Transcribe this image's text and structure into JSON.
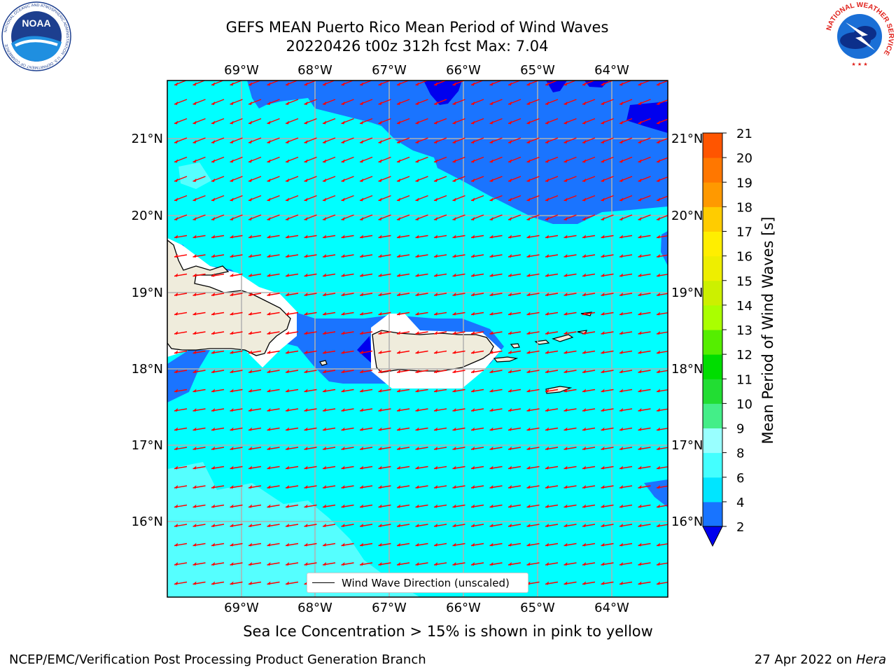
{
  "title": {
    "line1": "GEFS MEAN Puerto Rico Mean Period of Wind Waves",
    "line2": "20220426 t00z 312h fcst   Max: 7.04"
  },
  "logos": {
    "left": "NOAA",
    "left_ring": "NATIONAL OCEANIC AND ATMOSPHERIC ADMINISTRATION · U.S. DEPARTMENT OF COMMERCE",
    "right_ring": "NATIONAL WEATHER SERVICE"
  },
  "map": {
    "lon_labels": [
      "69°W",
      "68°W",
      "67°W",
      "66°W",
      "65°W",
      "64°W"
    ],
    "lat_labels": [
      "21°N",
      "20°N",
      "19°N",
      "18°N",
      "17°N",
      "16°N"
    ],
    "wind_wave_direction": "toward west-southwest",
    "arrow_color": "#ff0000",
    "land_color": "#efecdc"
  },
  "colorbar": {
    "label": "Mean Period of Wind Waves [s]",
    "ticks": [
      "2",
      "4",
      "6",
      "8",
      "9",
      "10",
      "11",
      "12",
      "13",
      "14",
      "15",
      "16",
      "17",
      "18",
      "19",
      "20",
      "21"
    ],
    "colors": [
      "#0000ee",
      "#1874ff",
      "#00e5ff",
      "#44ffff",
      "#99ffff",
      "#44ee88",
      "#22dd33",
      "#00dd00",
      "#55ee00",
      "#aaff00",
      "#ccf000",
      "#eeee00",
      "#ffee00",
      "#ffcc00",
      "#ff9900",
      "#ff7700",
      "#ff5500",
      "#ff2200"
    ]
  },
  "legend": {
    "label": "Wind Wave Direction (unscaled)"
  },
  "caption": "Sea Ice Concentration > 15% is shown in pink to yellow",
  "footer": {
    "left": "NCEP/EMC/Verification Post Processing Product Generation Branch",
    "right_prefix": "27 Apr 2022 on ",
    "right_host": "Hera"
  }
}
